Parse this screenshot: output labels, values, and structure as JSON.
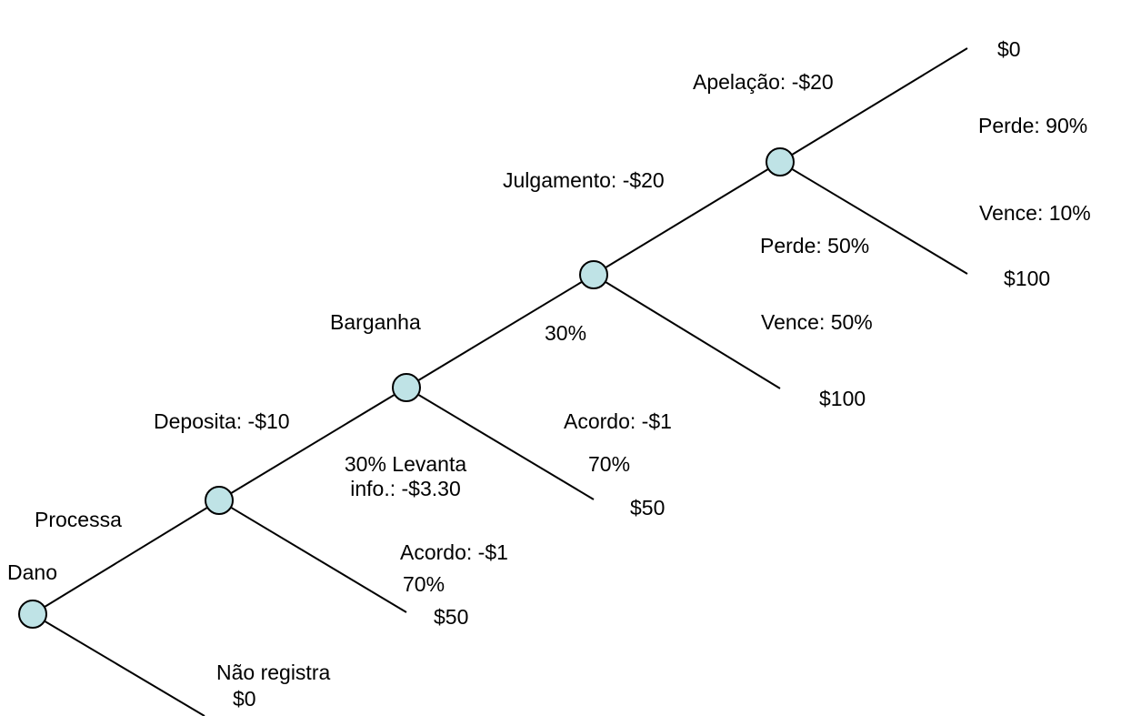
{
  "colors": {
    "node_fill": "#bfe3e6",
    "line": "#000000",
    "background": "#ffffff"
  },
  "labels": {
    "dano": "Dano",
    "processa": "Processa",
    "nao_registra": "Não registra",
    "nao_registra_value": "$0",
    "deposita": "Deposita: -$10",
    "acordo_1": "Acordo: -$1",
    "acordo_1_pct": "70%",
    "acordo_1_value": "$50",
    "levanta_line1": "30% Levanta",
    "levanta_line2": "info.: -$3.30",
    "barganha": "Barganha",
    "acordo_2": "Acordo: -$1",
    "acordo_2_pct": "70%",
    "acordo_2_value": "$50",
    "barganha_pct": "30%",
    "julgamento": "Julgamento: -$20",
    "perde_50": "Perde: 50%",
    "vence_50": "Vence: 50%",
    "julgamento_win_value": "$100",
    "apelacao": "Apelação: -$20",
    "perde_90": "Perde: 90%",
    "vence_10": "Vence: 10%",
    "apelacao_lose_value": "$0",
    "apelacao_win_value": "$100"
  }
}
